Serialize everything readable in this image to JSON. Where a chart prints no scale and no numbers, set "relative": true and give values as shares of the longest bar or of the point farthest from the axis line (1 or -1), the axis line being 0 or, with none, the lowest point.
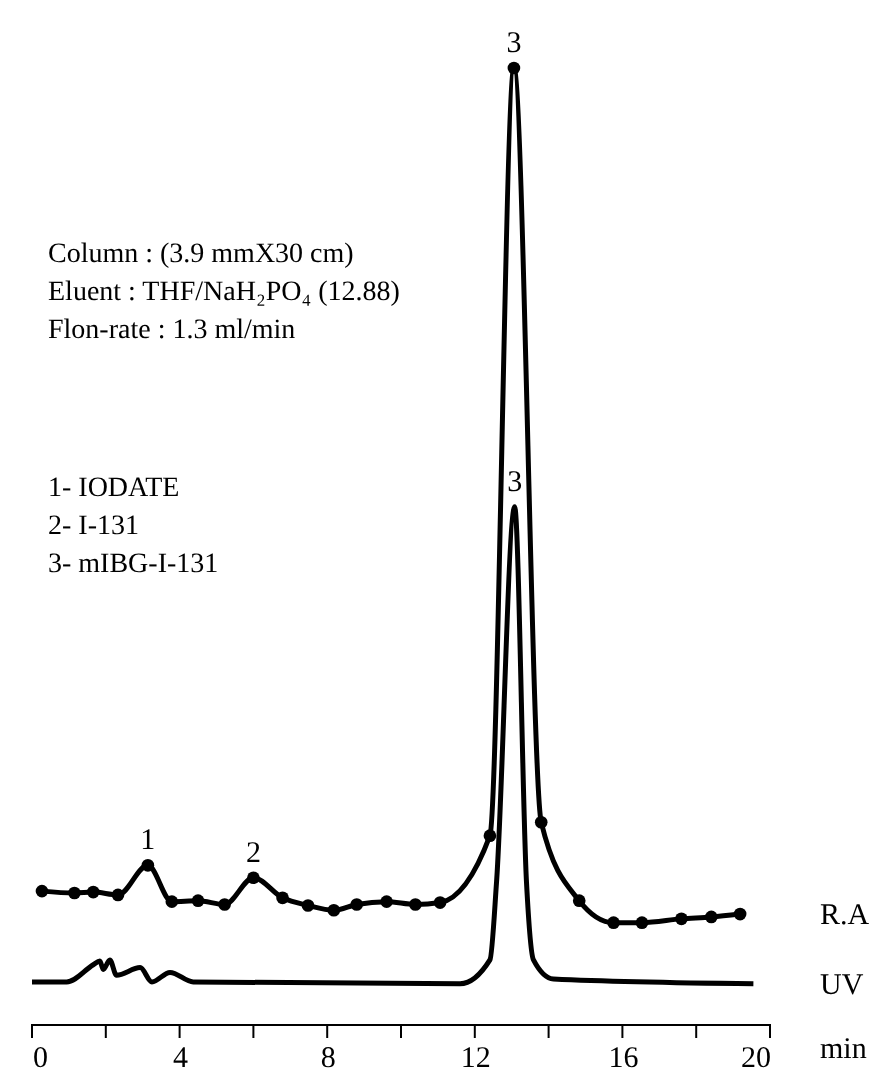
{
  "chart_data": {
    "type": "line",
    "relative": true,
    "xlabel": "min",
    "xlim": [
      0,
      20
    ],
    "xticks": [
      0,
      {
        "value": 2,
        "label": null
      },
      4,
      {
        "value": 6,
        "label": null
      },
      8,
      {
        "value": 10,
        "label": null
      },
      12,
      {
        "value": 14,
        "label": null
      },
      16,
      {
        "value": 18,
        "label": null
      },
      20
    ],
    "grid": false,
    "legend": false,
    "tick_labels": "x",
    "series": [
      {
        "name": "R.A",
        "color": "#000000",
        "marker": "circle",
        "x": [
          0.27,
          1.15,
          1.66,
          2.33,
          3.14,
          3.79,
          4.5,
          5.22,
          6.0,
          6.79,
          7.48,
          8.18,
          8.8,
          9.61,
          10.39,
          11.06,
          12.41,
          13.06,
          13.8,
          14.83,
          15.76,
          16.53,
          17.6,
          18.41,
          19.19
        ],
        "values": [
          0.139,
          0.137,
          0.138,
          0.135,
          0.166,
          0.128,
          0.129,
          0.125,
          0.153,
          0.132,
          0.124,
          0.119,
          0.125,
          0.128,
          0.125,
          0.127,
          0.197,
          1.0,
          0.211,
          0.129,
          0.106,
          0.106,
          0.11,
          0.112,
          0.115
        ]
      },
      {
        "name": "UV",
        "color": "#000000",
        "marker": "none",
        "x": [
          0.0,
          0.94,
          1.66,
          1.84,
          1.93,
          2.11,
          2.29,
          2.93,
          3.25,
          3.74,
          4.37,
          11.6,
          12.41,
          12.59,
          13.08,
          13.4,
          13.59,
          14.13,
          19.55
        ],
        "values": [
          0.044,
          0.044,
          0.062,
          0.066,
          0.057,
          0.067,
          0.051,
          0.059,
          0.044,
          0.054,
          0.044,
          0.042,
          0.067,
          0.149,
          0.541,
          0.149,
          0.067,
          0.047,
          0.042
        ]
      }
    ],
    "annotations": [
      "Column : (3.9 mmX30 cm)",
      "Eluent   : THF/NaH₂PO₄ (12.88)",
      "Flon-rate : 1.3 ml/min",
      "1- IODATE",
      "2- I-131",
      "3- mIBG-I-131",
      {
        "text": "1",
        "x": 3.14,
        "y": 0.166
      },
      {
        "text": "2",
        "x": 6.0,
        "y": 0.153
      },
      {
        "text": "3",
        "x": 13.06,
        "y": 1.0
      },
      {
        "text": "3",
        "x": 13.08,
        "y": 0.541
      }
    ]
  }
}
